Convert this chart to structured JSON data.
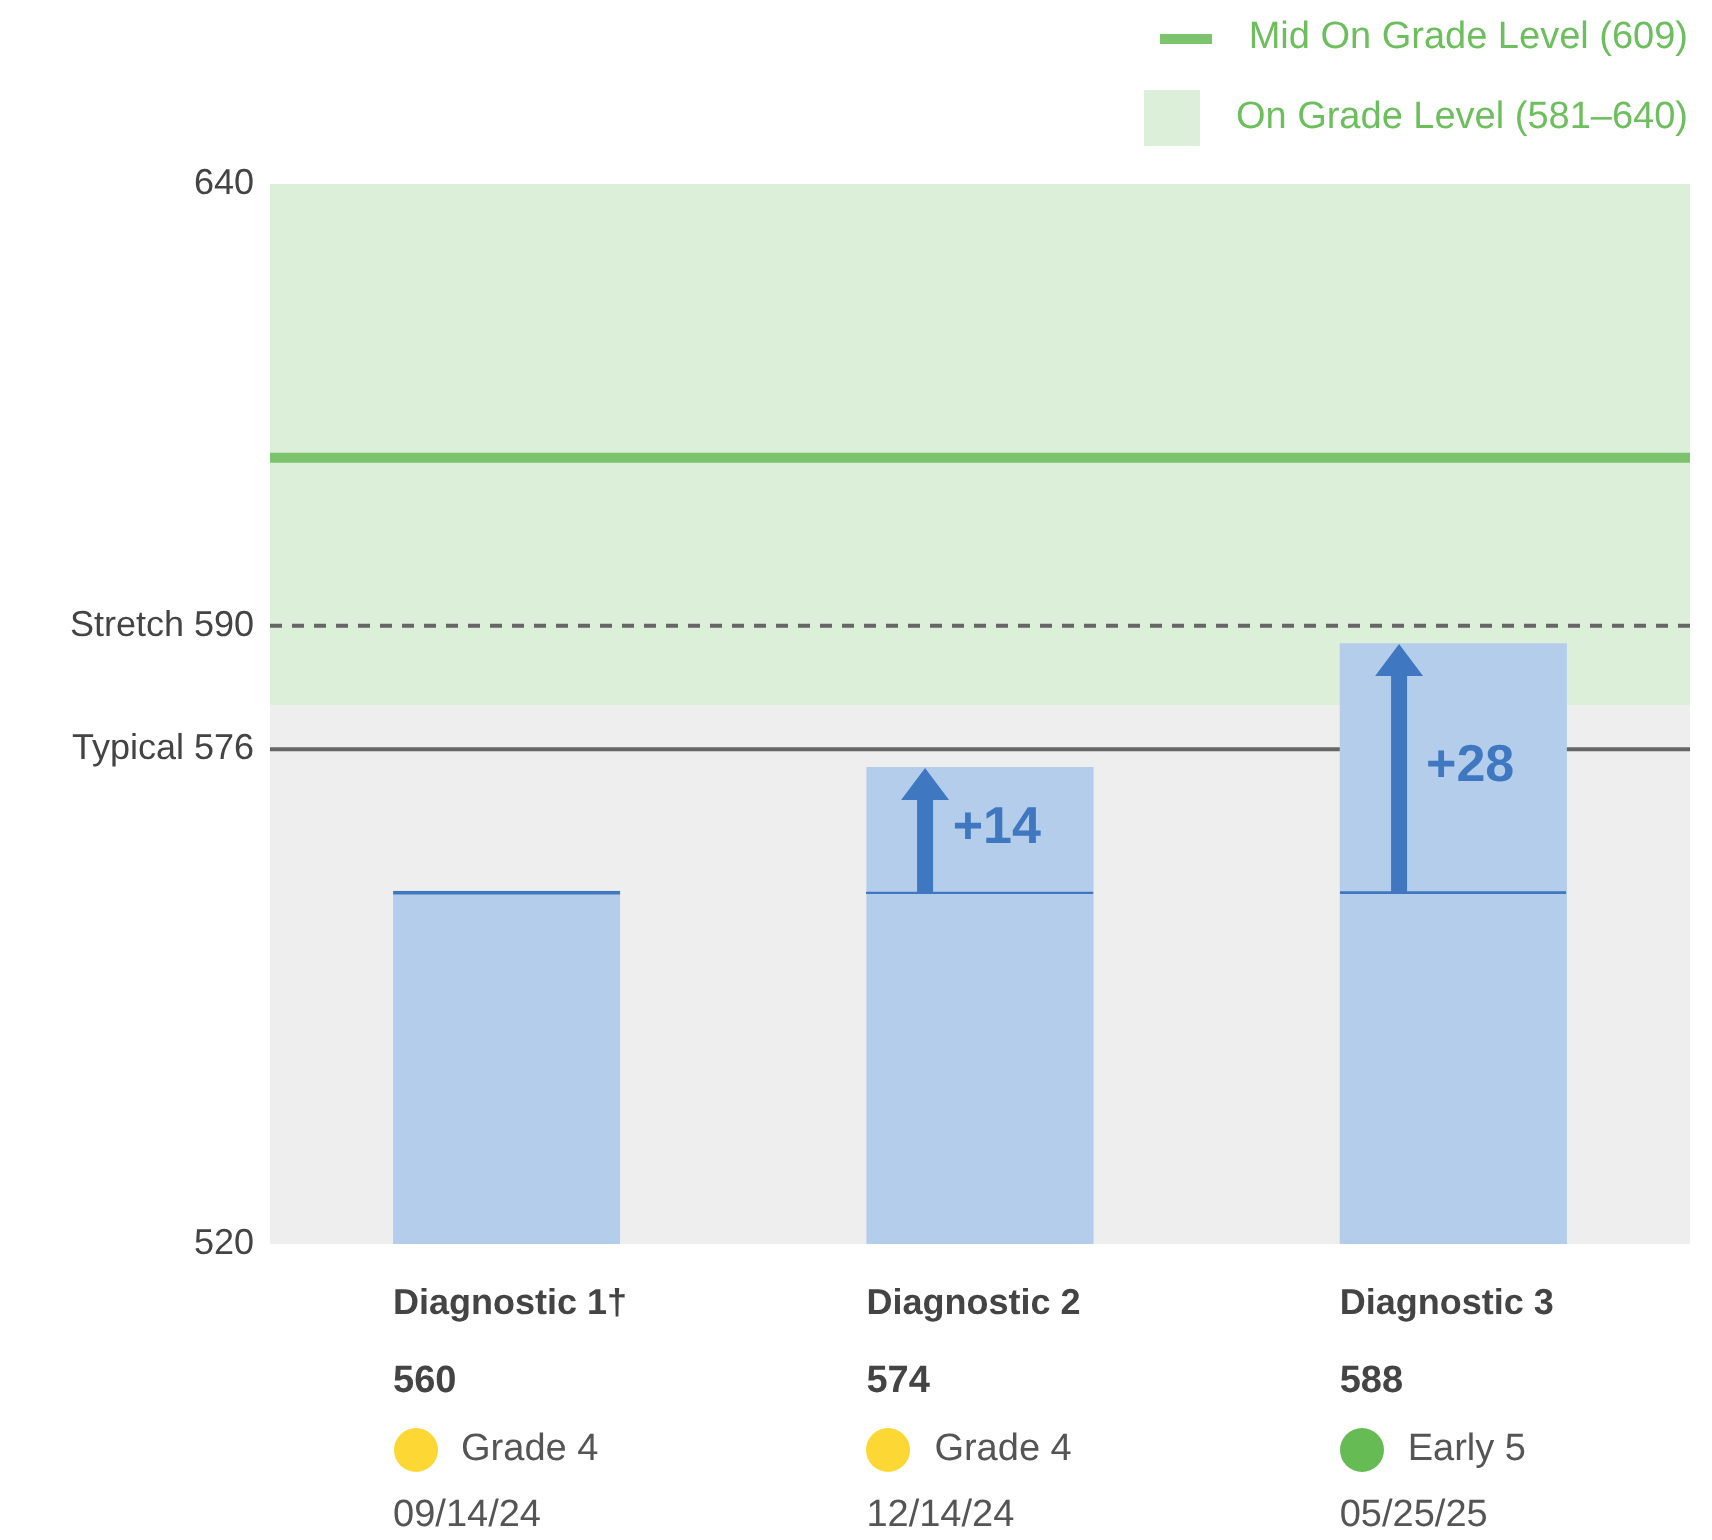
{
  "chart_data": {
    "type": "bar",
    "color": "#b4cdeb",
    "categories": [
      "Diagnostic 1†",
      "Diagnostic 2",
      "Diagnostic 3"
    ],
    "values": [
      560,
      574,
      588
    ],
    "value_labels": [
      "560",
      "574",
      "588"
    ],
    "ylim": [
      520,
      640
    ],
    "yticks": [
      520,
      {
        "value": 576,
        "label": "Typical 576"
      },
      {
        "value": 590,
        "label": "Stretch 590"
      },
      640
    ],
    "grid": false,
    "legend": "top right",
    "bands": [
      {
        "axis": "y",
        "from": 520,
        "to": 581,
        "color": "#eeeeee"
      },
      {
        "axis": "y",
        "from": 581,
        "to": 640,
        "color": "#dcefd9",
        "label": "On Grade Level (581–640)"
      }
    ],
    "ref_lines": [
      {
        "axis": "y",
        "value": 609,
        "color": "#7cc36e",
        "line_style": "solid",
        "label": "Mid On Grade Level (609)"
      },
      {
        "axis": "y",
        "value": 590,
        "color": "#666666",
        "line_style": "dashed"
      },
      {
        "axis": "y",
        "value": 576,
        "color": "#666666",
        "line_style": "solid"
      }
    ],
    "annotations": [
      "+14",
      "+28",
      "Grade 4",
      "09/14/24",
      "Grade 4",
      "12/14/24",
      "Early 5",
      "05/25/25"
    ]
  }
}
